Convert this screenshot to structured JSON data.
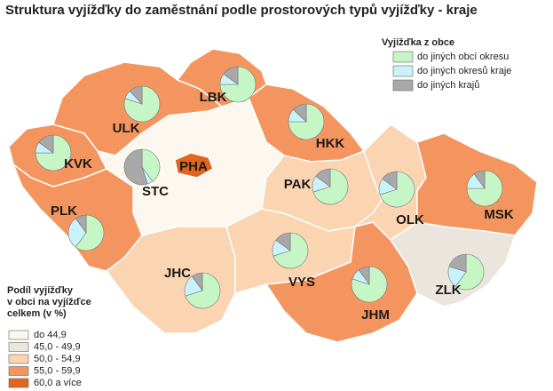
{
  "title": "Struktura vyjížďky do zaměstnání podle prostorových typů vyjížďky - kraje",
  "pie_legend": {
    "title": "Vyjížďka z obce",
    "items": [
      {
        "label": "do jiných obcí okresu",
        "color": "#c6f5c6"
      },
      {
        "label": "do jiných okresů kraje",
        "color": "#c9f3fb"
      },
      {
        "label": "do jiných krajů",
        "color": "#a8a8a8"
      }
    ]
  },
  "class_legend": {
    "title": [
      "Podíl vyjížďky",
      "v obci na vyjížďce",
      "celkem (v %)"
    ],
    "items": [
      {
        "label": "do 44,9",
        "color": "#fdf8ef"
      },
      {
        "label": "45,0 - 49,9",
        "color": "#ebe6dd"
      },
      {
        "label": "50,0 - 54,9",
        "color": "#fbd4b2"
      },
      {
        "label": "55,0 - 59,9",
        "color": "#f4955f"
      },
      {
        "label": "60,0 a více",
        "color": "#e0661f"
      }
    ]
  },
  "regions": [
    {
      "label": "KVK",
      "color": "#f4955f",
      "shares": [
        75,
        10,
        15
      ]
    },
    {
      "label": "ULK",
      "color": "#f4955f",
      "shares": [
        80,
        8,
        12
      ]
    },
    {
      "label": "LBK",
      "color": "#f4955f",
      "shares": [
        75,
        10,
        15
      ]
    },
    {
      "label": "HKK",
      "color": "#f4955f",
      "shares": [
        75,
        12,
        13
      ]
    },
    {
      "label": "STC",
      "color": "#fdf8ef",
      "shares": [
        40,
        5,
        55
      ]
    },
    {
      "label": "PHA",
      "color": "#e0661f",
      "shares": null
    },
    {
      "label": "PLK",
      "color": "#f4955f",
      "shares": [
        60,
        30,
        10
      ]
    },
    {
      "label": "JHC",
      "color": "#fbd4b2",
      "shares": [
        70,
        20,
        10
      ]
    },
    {
      "label": "VYS",
      "color": "#fbd4b2",
      "shares": [
        70,
        15,
        15
      ]
    },
    {
      "label": "PAK",
      "color": "#fbd4b2",
      "shares": [
        70,
        15,
        15
      ]
    },
    {
      "label": "JHM",
      "color": "#f4955f",
      "shares": [
        80,
        10,
        10
      ]
    },
    {
      "label": "OLK",
      "color": "#fbd4b2",
      "shares": [
        70,
        15,
        15
      ]
    },
    {
      "label": "MSK",
      "color": "#f4955f",
      "shares": [
        75,
        15,
        10
      ]
    },
    {
      "label": "ZLK",
      "color": "#ebe6dd",
      "shares": [
        60,
        20,
        20
      ]
    }
  ]
}
